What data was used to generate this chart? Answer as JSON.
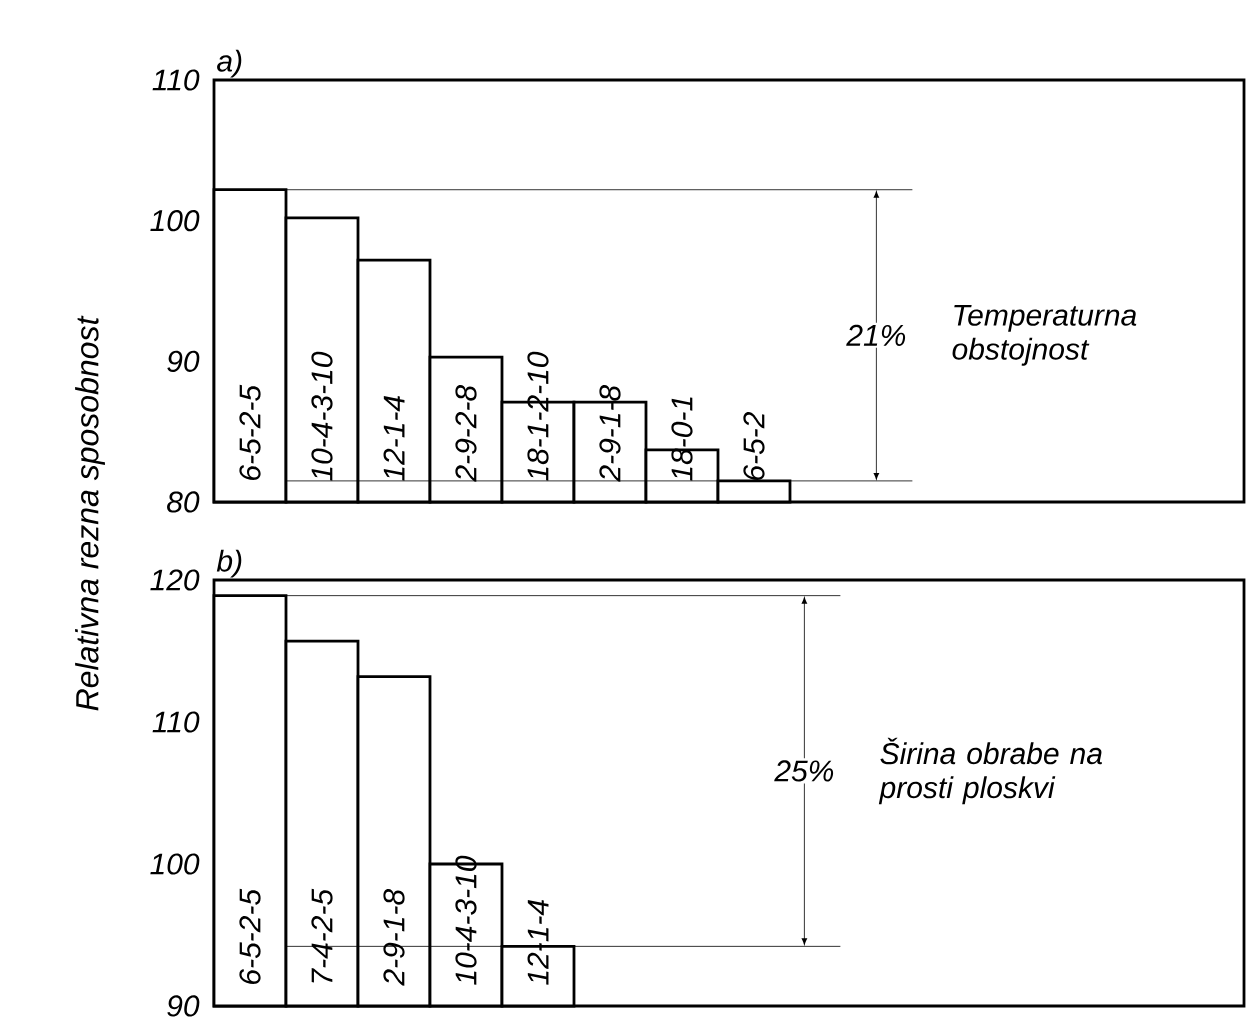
{
  "chart_data": [
    {
      "type": "bar",
      "title": "a)",
      "ylabel": "Relativna rezna sposobnost",
      "categories": [
        "6-5-2-5",
        "10-4-3-10",
        "12-1-4",
        "2-9-2-8",
        "18-1-2-10",
        "2-9-1-8",
        "18-0-1",
        "6-5-2"
      ],
      "values": [
        102.2,
        100.2,
        97.2,
        90.3,
        87.1,
        87.1,
        83.7,
        81.5
      ],
      "ylim": [
        80,
        110
      ],
      "yticks": [
        80,
        90,
        100,
        110
      ],
      "ref_lines": [
        {
          "axis": "y",
          "value": 102.2
        },
        {
          "axis": "y",
          "value": 81.5
        }
      ],
      "annotations": [
        "21%",
        "Temperaturna obstojnost"
      ]
    },
    {
      "type": "bar",
      "title": "b)",
      "categories": [
        "6-5-2-5",
        "7-4-2-5",
        "2-9-1-8",
        "10-4-3-10",
        "12-1-4"
      ],
      "values": [
        118.9,
        115.7,
        113.2,
        100.0,
        94.2
      ],
      "ylim": [
        90,
        120
      ],
      "yticks": [
        90,
        100,
        110,
        120
      ],
      "ref_lines": [
        {
          "axis": "y",
          "value": 118.9
        },
        {
          "axis": "y",
          "value": 94.2
        }
      ],
      "annotations": [
        "25%",
        "Širina obrabe na prosti ploskvi"
      ]
    }
  ]
}
